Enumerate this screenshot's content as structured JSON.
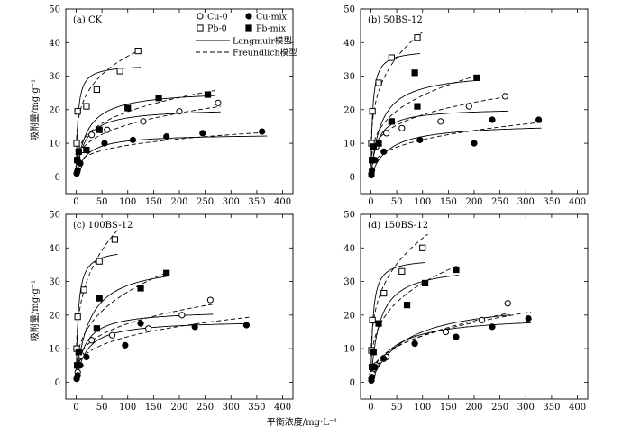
{
  "figure": {
    "xlabel": "平衡浓度/mg·L⁻¹",
    "ylabel": "吸附量/mg·g⁻¹"
  },
  "legend": {
    "entries": [
      {
        "label": "Cu-0",
        "marker": "open-circle"
      },
      {
        "label": "Cu-mix",
        "marker": "filled-circle"
      },
      {
        "label": "Pb-0",
        "marker": "open-square"
      },
      {
        "label": "Pb-mix",
        "marker": "filled-square"
      },
      {
        "label": "Langmuir模型",
        "line": "solid"
      },
      {
        "label": "Freundlich模型",
        "line": "dashed"
      }
    ]
  },
  "chart_data": [
    {
      "type": "scatter",
      "title": "(a) CK",
      "xlim": [
        -20,
        420
      ],
      "ylim": [
        -5,
        50
      ],
      "xticks": [
        0,
        50,
        100,
        150,
        200,
        250,
        300,
        350,
        400
      ],
      "yticks": [
        0,
        10,
        20,
        30,
        40,
        50
      ],
      "series": [
        {
          "name": "Cu-0",
          "marker": "open-circle",
          "points": [
            [
              2,
              1.5
            ],
            [
              5,
              3
            ],
            [
              12,
              8
            ],
            [
              30,
              12.5
            ],
            [
              60,
              14
            ],
            [
              130,
              16.5
            ],
            [
              200,
              19.5
            ],
            [
              275,
              22
            ]
          ]
        },
        {
          "name": "Cu-mix",
          "marker": "filled-circle",
          "points": [
            [
              1,
              1
            ],
            [
              3,
              2
            ],
            [
              8,
              4
            ],
            [
              20,
              8
            ],
            [
              55,
              10
            ],
            [
              110,
              11
            ],
            [
              175,
              12
            ],
            [
              245,
              13
            ],
            [
              360,
              13.5
            ]
          ]
        },
        {
          "name": "Pb-0",
          "marker": "open-square",
          "points": [
            [
              1,
              10
            ],
            [
              3,
              19.5
            ],
            [
              20,
              21
            ],
            [
              40,
              26
            ],
            [
              85,
              31.5
            ],
            [
              120,
              37.5
            ]
          ]
        },
        {
          "name": "Pb-mix",
          "marker": "filled-square",
          "points": [
            [
              2,
              5
            ],
            [
              5,
              7.5
            ],
            [
              20,
              8
            ],
            [
              45,
              14
            ],
            [
              100,
              20.5
            ],
            [
              160,
              23.5
            ],
            [
              255,
              24.5
            ]
          ]
        }
      ],
      "curves": [
        {
          "series": "Pb-0",
          "model": "Langmuir",
          "qmax": 33.5,
          "K": 0.3,
          "xmax": 125
        },
        {
          "series": "Pb-mix",
          "model": "Langmuir",
          "qmax": 26,
          "K": 0.05,
          "xmax": 270
        },
        {
          "series": "Cu-0",
          "model": "Langmuir",
          "qmax": 20.5,
          "K": 0.06,
          "xmax": 280
        },
        {
          "series": "Cu-mix",
          "model": "Langmuir",
          "qmax": 12.8,
          "K": 0.05,
          "xmax": 370
        },
        {
          "series": "Pb-0",
          "model": "Freundlich",
          "Kf": 12.0,
          "n": 4.2,
          "xmax": 125
        },
        {
          "series": "Pb-mix",
          "model": "Freundlich",
          "Kf": 5.2,
          "n": 3.5,
          "xmax": 270
        },
        {
          "series": "Cu-0",
          "model": "Freundlich",
          "Kf": 4.0,
          "n": 3.4,
          "xmax": 280
        },
        {
          "series": "Cu-mix",
          "model": "Freundlich",
          "Kf": 2.8,
          "n": 3.8,
          "xmax": 370
        }
      ]
    },
    {
      "type": "scatter",
      "title": "(b) 50BS-12",
      "xlim": [
        -20,
        420
      ],
      "ylim": [
        -5,
        50
      ],
      "xticks": [
        0,
        50,
        100,
        150,
        200,
        250,
        300,
        350,
        400
      ],
      "yticks": [
        0,
        10,
        20,
        30,
        40,
        50
      ],
      "series": [
        {
          "name": "Cu-0",
          "marker": "open-circle",
          "points": [
            [
              1,
              1
            ],
            [
              3,
              5
            ],
            [
              10,
              9
            ],
            [
              30,
              13
            ],
            [
              60,
              14.5
            ],
            [
              135,
              16.5
            ],
            [
              190,
              21
            ],
            [
              260,
              24
            ]
          ]
        },
        {
          "name": "Cu-mix",
          "marker": "filled-circle",
          "points": [
            [
              1,
              0.5
            ],
            [
              2,
              2
            ],
            [
              8,
              5
            ],
            [
              25,
              7.5
            ],
            [
              95,
              11
            ],
            [
              200,
              10
            ],
            [
              235,
              17
            ],
            [
              325,
              17
            ]
          ]
        },
        {
          "name": "Pb-0",
          "marker": "open-square",
          "points": [
            [
              1,
              10
            ],
            [
              3,
              19.5
            ],
            [
              15,
              28
            ],
            [
              40,
              35.5
            ],
            [
              90,
              41.5
            ]
          ]
        },
        {
          "name": "Pb-mix",
          "marker": "filled-square",
          "points": [
            [
              2,
              5
            ],
            [
              5,
              9
            ],
            [
              15,
              10
            ],
            [
              40,
              16.5
            ],
            [
              90,
              21
            ],
            [
              85,
              31
            ],
            [
              205,
              29.5
            ]
          ]
        }
      ],
      "curves": [
        {
          "series": "Pb-0",
          "model": "Langmuir",
          "qmax": 38,
          "K": 0.3,
          "xmax": 95
        },
        {
          "series": "Pb-mix",
          "model": "Langmuir",
          "qmax": 31.5,
          "K": 0.05,
          "xmax": 210
        },
        {
          "series": "Cu-0",
          "model": "Langmuir",
          "qmax": 20.5,
          "K": 0.08,
          "xmax": 265
        },
        {
          "series": "Cu-mix",
          "model": "Langmuir",
          "qmax": 16,
          "K": 0.03,
          "xmax": 330
        },
        {
          "series": "Pb-0",
          "model": "Freundlich",
          "Kf": 12.0,
          "n": 3.6,
          "xmax": 100
        },
        {
          "series": "Pb-mix",
          "model": "Freundlich",
          "Kf": 6.0,
          "n": 3.3,
          "xmax": 210
        },
        {
          "series": "Cu-0",
          "model": "Freundlich",
          "Kf": 5.5,
          "n": 3.8,
          "xmax": 265
        },
        {
          "series": "Cu-mix",
          "model": "Freundlich",
          "Kf": 2.5,
          "n": 3.1,
          "xmax": 330
        }
      ]
    },
    {
      "type": "scatter",
      "title": "(c) 100BS-12",
      "xlim": [
        -20,
        420
      ],
      "ylim": [
        -5,
        50
      ],
      "xticks": [
        0,
        50,
        100,
        150,
        200,
        250,
        300,
        350,
        400
      ],
      "yticks": [
        0,
        10,
        20,
        30,
        40,
        50
      ],
      "series": [
        {
          "name": "Cu-0",
          "marker": "open-circle",
          "points": [
            [
              1,
              1
            ],
            [
              3,
              3
            ],
            [
              10,
              8
            ],
            [
              30,
              12.5
            ],
            [
              70,
              14
            ],
            [
              140,
              16
            ],
            [
              205,
              20
            ],
            [
              260,
              24.5
            ]
          ]
        },
        {
          "name": "Cu-mix",
          "marker": "filled-circle",
          "points": [
            [
              1,
              1
            ],
            [
              3,
              2
            ],
            [
              8,
              5
            ],
            [
              20,
              7.5
            ],
            [
              95,
              11
            ],
            [
              125,
              17.5
            ],
            [
              230,
              16.5
            ],
            [
              330,
              17
            ]
          ]
        },
        {
          "name": "Pb-0",
          "marker": "open-square",
          "points": [
            [
              1,
              10
            ],
            [
              3,
              19.5
            ],
            [
              15,
              27.5
            ],
            [
              45,
              36
            ],
            [
              75,
              42.5
            ]
          ]
        },
        {
          "name": "Pb-mix",
          "marker": "filled-square",
          "points": [
            [
              2,
              5
            ],
            [
              5,
              9
            ],
            [
              40,
              16
            ],
            [
              45,
              25
            ],
            [
              125,
              28
            ],
            [
              175,
              32.5
            ]
          ]
        }
      ],
      "curves": [
        {
          "series": "Pb-0",
          "model": "Langmuir",
          "qmax": 40,
          "K": 0.25,
          "xmax": 80
        },
        {
          "series": "Pb-mix",
          "model": "Langmuir",
          "qmax": 36,
          "K": 0.04,
          "xmax": 180
        },
        {
          "series": "Cu-0",
          "model": "Langmuir",
          "qmax": 21.5,
          "K": 0.06,
          "xmax": 265
        },
        {
          "series": "Cu-mix",
          "model": "Langmuir",
          "qmax": 18.5,
          "K": 0.05,
          "xmax": 335
        },
        {
          "series": "Pb-0",
          "model": "Freundlich",
          "Kf": 12.0,
          "n": 3.3,
          "xmax": 80
        },
        {
          "series": "Pb-mix",
          "model": "Freundlich",
          "Kf": 5.5,
          "n": 2.9,
          "xmax": 180
        },
        {
          "series": "Cu-0",
          "model": "Freundlich",
          "Kf": 4.5,
          "n": 3.4,
          "xmax": 265
        },
        {
          "series": "Cu-mix",
          "model": "Freundlich",
          "Kf": 3.5,
          "n": 3.4,
          "xmax": 335
        }
      ]
    },
    {
      "type": "scatter",
      "title": "(d) 150BS-12",
      "xlim": [
        -20,
        420
      ],
      "ylim": [
        -5,
        50
      ],
      "xticks": [
        0,
        50,
        100,
        150,
        200,
        250,
        300,
        350,
        400
      ],
      "yticks": [
        0,
        10,
        20,
        30,
        40,
        50
      ],
      "series": [
        {
          "name": "Cu-0",
          "marker": "open-circle",
          "points": [
            [
              1,
              1
            ],
            [
              3,
              2.5
            ],
            [
              10,
              5
            ],
            [
              30,
              7.5
            ],
            [
              85,
              11.5
            ],
            [
              145,
              15
            ],
            [
              215,
              18.5
            ],
            [
              265,
              23.5
            ]
          ]
        },
        {
          "name": "Cu-mix",
          "marker": "filled-circle",
          "points": [
            [
              1,
              0.5
            ],
            [
              2,
              1.5
            ],
            [
              8,
              4.5
            ],
            [
              25,
              7
            ],
            [
              85,
              11.5
            ],
            [
              165,
              13.5
            ],
            [
              235,
              16.5
            ],
            [
              305,
              19
            ]
          ]
        },
        {
          "name": "Pb-0",
          "marker": "open-square",
          "points": [
            [
              1,
              9.5
            ],
            [
              3,
              18.5
            ],
            [
              25,
              26.5
            ],
            [
              60,
              33
            ],
            [
              100,
              40
            ]
          ]
        },
        {
          "name": "Pb-mix",
          "marker": "filled-square",
          "points": [
            [
              2,
              4.5
            ],
            [
              5,
              9
            ],
            [
              15,
              17.5
            ],
            [
              70,
              23
            ],
            [
              105,
              29.5
            ],
            [
              165,
              33.5
            ]
          ]
        }
      ],
      "curves": [
        {
          "series": "Pb-0",
          "model": "Langmuir",
          "qmax": 37,
          "K": 0.25,
          "xmax": 105
        },
        {
          "series": "Pb-mix",
          "model": "Langmuir",
          "qmax": 35,
          "K": 0.06,
          "xmax": 170
        },
        {
          "series": "Cu-0",
          "model": "Langmuir",
          "qmax": 25,
          "K": 0.015,
          "xmax": 270
        },
        {
          "series": "Cu-mix",
          "model": "Langmuir",
          "qmax": 20,
          "K": 0.025,
          "xmax": 310
        },
        {
          "series": "Pb-0",
          "model": "Freundlich",
          "Kf": 11.5,
          "n": 3.5,
          "xmax": 110
        },
        {
          "series": "Pb-mix",
          "model": "Freundlich",
          "Kf": 7.0,
          "n": 3.2,
          "xmax": 170
        },
        {
          "series": "Cu-0",
          "model": "Freundlich",
          "Kf": 2.2,
          "n": 2.5,
          "xmax": 270
        },
        {
          "series": "Cu-mix",
          "model": "Freundlich",
          "Kf": 2.5,
          "n": 2.7,
          "xmax": 310
        }
      ]
    }
  ]
}
